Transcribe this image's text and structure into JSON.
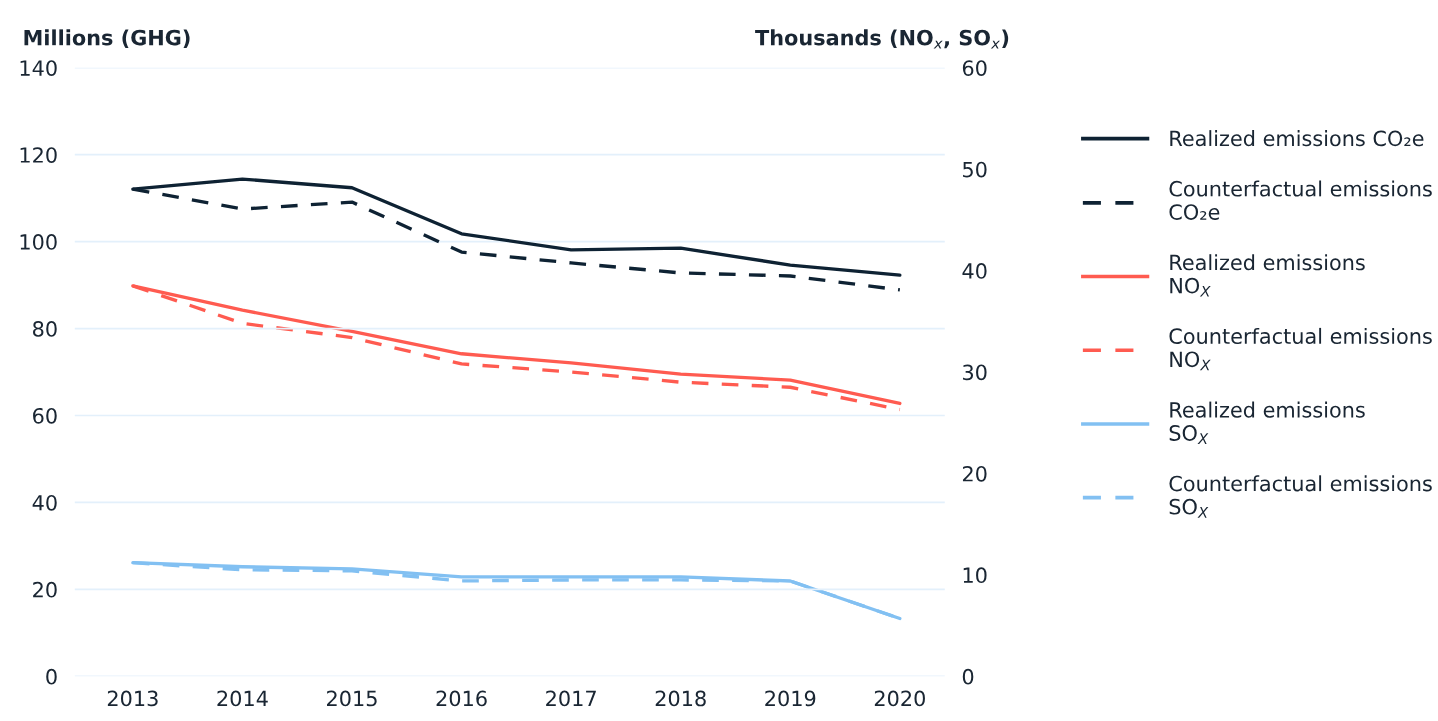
{
  "chart_data": {
    "type": "line",
    "categories": [
      "2013",
      "2014",
      "2015",
      "2016",
      "2017",
      "2018",
      "2019",
      "2020"
    ],
    "ylabel": "Millions (GHG)",
    "y2label": "Thousands (NO$_{x}$, SO$_{x}$)",
    "ylim": [
      0,
      140
    ],
    "yticks": [
      0,
      20,
      40,
      60,
      80,
      100,
      120,
      140
    ],
    "y2lim": [
      0,
      60
    ],
    "y2ticks": [
      0,
      10,
      20,
      30,
      40,
      50,
      60
    ],
    "grid": "y",
    "legend": "right",
    "marker": "none",
    "series": [
      {
        "name": "Realized emissions CO₂e",
        "color": "#0e2233",
        "line_style": "solid",
        "values": [
          112.1,
          114.4,
          112.4,
          101.8,
          98.1,
          98.5,
          94.6,
          92.3
        ]
      },
      {
        "name": "Counterfactual emissions CO₂e",
        "color": "#0e2233",
        "line_style": "dashed",
        "values": [
          112.1,
          107.5,
          109.1,
          97.6,
          95.1,
          92.8,
          92.1,
          88.9
        ]
      },
      {
        "name": "Realized emissions NO$_{X}$",
        "color": "#ff5b50",
        "line_style": "solid",
        "axis": "y2",
        "values": [
          38.5,
          36.1,
          34.0,
          31.8,
          30.9,
          29.8,
          29.2,
          26.9
        ]
      },
      {
        "name": "Counterfactual emissions NO$_{X}$",
        "color": "#ff5b50",
        "line_style": "dashed",
        "axis": "y2",
        "values": [
          38.5,
          34.8,
          33.4,
          30.8,
          30.0,
          29.0,
          28.5,
          26.3
        ]
      },
      {
        "name": "Realized emissions SO$_{X}$",
        "color": "#82c0f2",
        "line_style": "solid",
        "axis": "y2",
        "values": [
          11.2,
          10.8,
          10.6,
          9.8,
          9.8,
          9.8,
          9.4,
          5.7
        ]
      },
      {
        "name": "Counterfactual emissions SO$_{X}$",
        "color": "#82c0f2",
        "line_style": "dashed",
        "axis": "y2",
        "values": [
          11.2,
          10.5,
          10.4,
          9.4,
          9.5,
          9.5,
          9.4,
          5.7
        ]
      }
    ]
  }
}
